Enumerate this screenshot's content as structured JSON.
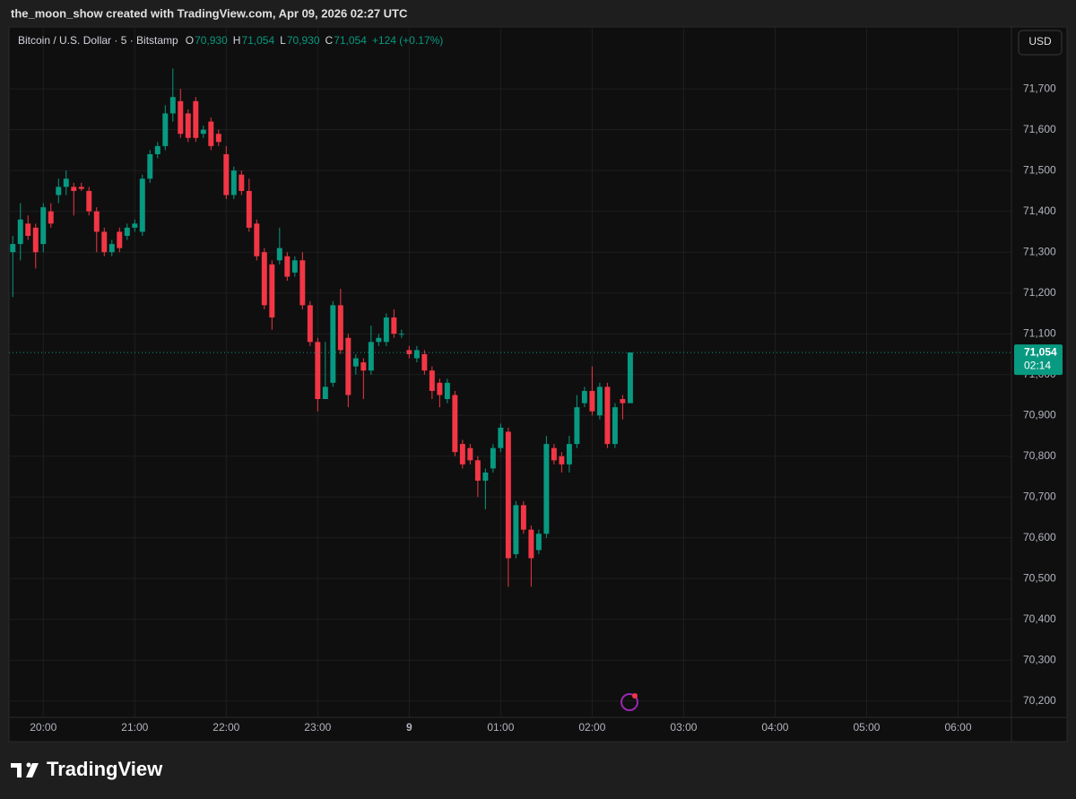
{
  "header": "the_moon_show created with TradingView.com, Apr 09, 2026 02:27 UTC",
  "footer_logo": "TradingView",
  "chart_data": {
    "type": "candlestick",
    "symbol": "Bitcoin / U.S. Dollar · 5 · Bitstamp",
    "ohlc_legend": [
      "O",
      "70,930",
      "H",
      "71,054",
      "L",
      "70,930",
      "C",
      "71,054",
      "+124 (+0.17%)"
    ],
    "currency_button": "USD",
    "up_color": "#089981",
    "down_color": "#f23645",
    "open": [
      71300,
      71320,
      71370,
      71360,
      71320,
      71400,
      71440,
      71460,
      71460,
      71460,
      71450,
      71400,
      71350,
      71300,
      71350,
      71340,
      71360,
      71350,
      71480,
      71540,
      71560,
      71640,
      71670,
      71640,
      71670,
      71590,
      71620,
      71590,
      71540,
      71440,
      71490,
      71450,
      71370,
      71300,
      71270,
      71280,
      71290,
      71250,
      71280,
      71170,
      71080,
      70940,
      70980,
      71170,
      71090,
      71020,
      71030,
      71010,
      71080,
      71080,
      71140,
      71100,
      71060,
      71040,
      71050,
      71010,
      70980,
      70940,
      70950,
      70830,
      70820,
      70790,
      70740,
      70770,
      70820,
      70860,
      70560,
      70680,
      70620,
      70570,
      70610,
      70820,
      70800,
      70780,
      70830,
      70930,
      70960,
      70900,
      70970,
      70830,
      70940,
      70930
    ],
    "high": [
      71340,
      71420,
      71390,
      71370,
      71420,
      71420,
      71480,
      71500,
      71470,
      71470,
      71460,
      71410,
      71360,
      71330,
      71360,
      71370,
      71380,
      71490,
      71550,
      71570,
      71660,
      71750,
      71700,
      71650,
      71680,
      71610,
      71630,
      71600,
      71560,
      71510,
      71500,
      71480,
      71380,
      71310,
      71280,
      71360,
      71300,
      71290,
      71300,
      71180,
      71090,
      71080,
      71180,
      71210,
      71100,
      71050,
      71040,
      71120,
      71100,
      71150,
      71160,
      71110,
      71070,
      71070,
      71060,
      71020,
      70990,
      70990,
      70960,
      70840,
      70830,
      70800,
      70770,
      70830,
      70880,
      70870,
      70690,
      70690,
      70630,
      70620,
      70850,
      70830,
      70810,
      70850,
      70950,
      70970,
      71020,
      70980,
      70980,
      70930,
      70950,
      71054
    ],
    "low": [
      71190,
      71280,
      71330,
      71260,
      71300,
      71360,
      71420,
      71440,
      71390,
      71450,
      71390,
      71300,
      71290,
      71290,
      71300,
      71330,
      71350,
      71340,
      71470,
      71530,
      71550,
      71620,
      71580,
      71570,
      71570,
      71580,
      71550,
      71560,
      71430,
      71430,
      71440,
      71350,
      71280,
      71160,
      71110,
      71270,
      71230,
      71240,
      71160,
      71070,
      70910,
      70940,
      70970,
      71050,
      70920,
      71000,
      70940,
      71000,
      71070,
      71070,
      71090,
      71090,
      71040,
      71030,
      71000,
      70940,
      70920,
      70930,
      70800,
      70770,
      70780,
      70700,
      70670,
      70760,
      70810,
      70480,
      70550,
      70610,
      70480,
      70560,
      70600,
      70780,
      70760,
      70760,
      70820,
      70920,
      70900,
      70890,
      70820,
      70820,
      70890,
      70930
    ],
    "close": [
      71320,
      71380,
      71340,
      71300,
      71410,
      71370,
      71460,
      71480,
      71450,
      71455,
      71400,
      71350,
      71300,
      71320,
      71310,
      71360,
      71370,
      71480,
      71540,
      71560,
      71640,
      71680,
      71590,
      71580,
      71580,
      71600,
      71560,
      71570,
      71440,
      71500,
      71450,
      71360,
      71290,
      71170,
      71140,
      71310,
      71240,
      71280,
      71170,
      71080,
      70940,
      70970,
      71170,
      71060,
      70950,
      71040,
      71010,
      71080,
      71090,
      71140,
      71100,
      71100,
      71050,
      71060,
      71010,
      70960,
      70950,
      70980,
      70810,
      70780,
      70790,
      70740,
      70760,
      70820,
      70870,
      70550,
      70680,
      70620,
      70550,
      70610,
      70830,
      70790,
      70780,
      70830,
      70920,
      70960,
      70910,
      70970,
      70830,
      70920,
      70930,
      71054
    ],
    "xlim": [
      -0.5,
      131
    ],
    "xticks": [
      {
        "value": 4,
        "label": "20:00"
      },
      {
        "value": 16,
        "label": "21:00"
      },
      {
        "value": 28,
        "label": "22:00"
      },
      {
        "value": 40,
        "label": "23:00"
      },
      {
        "value": 52,
        "label": "9"
      },
      {
        "value": 64,
        "label": "01:00"
      },
      {
        "value": 76,
        "label": "02:00"
      },
      {
        "value": 88,
        "label": "03:00"
      },
      {
        "value": 100,
        "label": "04:00"
      },
      {
        "value": 112,
        "label": "05:00"
      },
      {
        "value": 124,
        "label": "06:00"
      }
    ],
    "ylim": [
      70160,
      71852
    ],
    "yticks": [
      {
        "value": 70200,
        "label": "70,200"
      },
      {
        "value": 70300,
        "label": "70,300"
      },
      {
        "value": 70400,
        "label": "70,400"
      },
      {
        "value": 70500,
        "label": "70,500"
      },
      {
        "value": 70600,
        "label": "70,600"
      },
      {
        "value": 70700,
        "label": "70,700"
      },
      {
        "value": 70800,
        "label": "70,800"
      },
      {
        "value": 70900,
        "label": "70,900"
      },
      {
        "value": 71000,
        "label": "71,000"
      },
      {
        "value": 71100,
        "label": "71,100"
      },
      {
        "value": 71200,
        "label": "71,200"
      },
      {
        "value": 71300,
        "label": "71,300"
      },
      {
        "value": 71400,
        "label": "71,400"
      },
      {
        "value": 71500,
        "label": "71,500"
      },
      {
        "value": 71600,
        "label": "71,600"
      },
      {
        "value": 71700,
        "label": "71,700"
      }
    ],
    "last_price": {
      "value": 71054,
      "label": "71,054"
    },
    "countdown": "02:14",
    "grid": true
  }
}
